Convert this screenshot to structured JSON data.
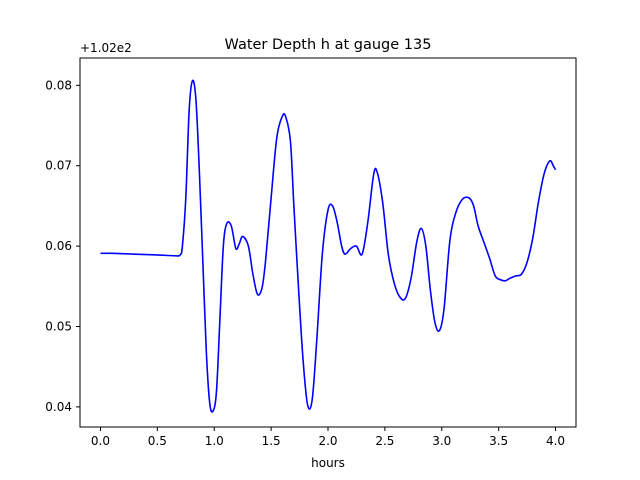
{
  "figure": {
    "title": "Water Depth h at gauge 135",
    "offset_label": "+1.02e2"
  },
  "chart_data": {
    "type": "line",
    "title": "Water Depth h at gauge 135",
    "xlabel": "hours",
    "ylabel": "",
    "y_offset_label": "+1.02e2",
    "xlim": [
      -0.18,
      4.18
    ],
    "ylim": [
      0.0375,
      0.0834
    ],
    "xticks": [
      0.0,
      0.5,
      1.0,
      1.5,
      2.0,
      2.5,
      3.0,
      3.5,
      4.0
    ],
    "xtick_labels": [
      "0.0",
      "0.5",
      "1.0",
      "1.5",
      "2.0",
      "2.5",
      "3.0",
      "3.5",
      "4.0"
    ],
    "yticks": [
      0.04,
      0.05,
      0.06,
      0.07,
      0.08
    ],
    "ytick_labels": [
      "0.04",
      "0.05",
      "0.06",
      "0.07",
      "0.08"
    ],
    "grid": false,
    "series": [
      {
        "color": "#0000ff",
        "x": [
          0.0,
          0.1,
          0.3,
          0.5,
          0.65,
          0.7,
          0.72,
          0.75,
          0.78,
          0.81,
          0.84,
          0.87,
          0.9,
          0.93,
          0.96,
          0.99,
          1.02,
          1.05,
          1.08,
          1.11,
          1.15,
          1.19,
          1.22,
          1.25,
          1.3,
          1.34,
          1.38,
          1.42,
          1.45,
          1.5,
          1.55,
          1.6,
          1.63,
          1.67,
          1.7,
          1.74,
          1.78,
          1.82,
          1.86,
          1.9,
          1.95,
          2.0,
          2.04,
          2.08,
          2.12,
          2.15,
          2.2,
          2.25,
          2.3,
          2.35,
          2.4,
          2.43,
          2.48,
          2.53,
          2.58,
          2.63,
          2.68,
          2.73,
          2.78,
          2.82,
          2.86,
          2.9,
          2.94,
          2.98,
          3.02,
          3.07,
          3.12,
          3.18,
          3.24,
          3.28,
          3.32,
          3.37,
          3.42,
          3.47,
          3.52,
          3.56,
          3.6,
          3.65,
          3.7,
          3.75,
          3.8,
          3.85,
          3.9,
          3.95,
          3.98,
          4.0
        ],
        "y": [
          0.0591,
          0.0591,
          0.059,
          0.0589,
          0.0588,
          0.0589,
          0.06,
          0.066,
          0.077,
          0.0806,
          0.078,
          0.069,
          0.058,
          0.047,
          0.0405,
          0.0395,
          0.042,
          0.051,
          0.06,
          0.0628,
          0.0625,
          0.0597,
          0.0603,
          0.0612,
          0.06,
          0.0565,
          0.054,
          0.0548,
          0.058,
          0.066,
          0.0735,
          0.0762,
          0.076,
          0.073,
          0.065,
          0.055,
          0.046,
          0.0403,
          0.0408,
          0.048,
          0.059,
          0.0645,
          0.065,
          0.063,
          0.06,
          0.059,
          0.0597,
          0.06,
          0.059,
          0.063,
          0.0688,
          0.0693,
          0.0655,
          0.059,
          0.0555,
          0.0537,
          0.0535,
          0.056,
          0.0605,
          0.0622,
          0.06,
          0.0545,
          0.0505,
          0.0495,
          0.0522,
          0.0605,
          0.064,
          0.0658,
          0.066,
          0.065,
          0.0625,
          0.0605,
          0.0585,
          0.0563,
          0.0558,
          0.0557,
          0.056,
          0.0563,
          0.0565,
          0.058,
          0.061,
          0.0655,
          0.069,
          0.0706,
          0.07,
          0.0695
        ]
      }
    ]
  }
}
